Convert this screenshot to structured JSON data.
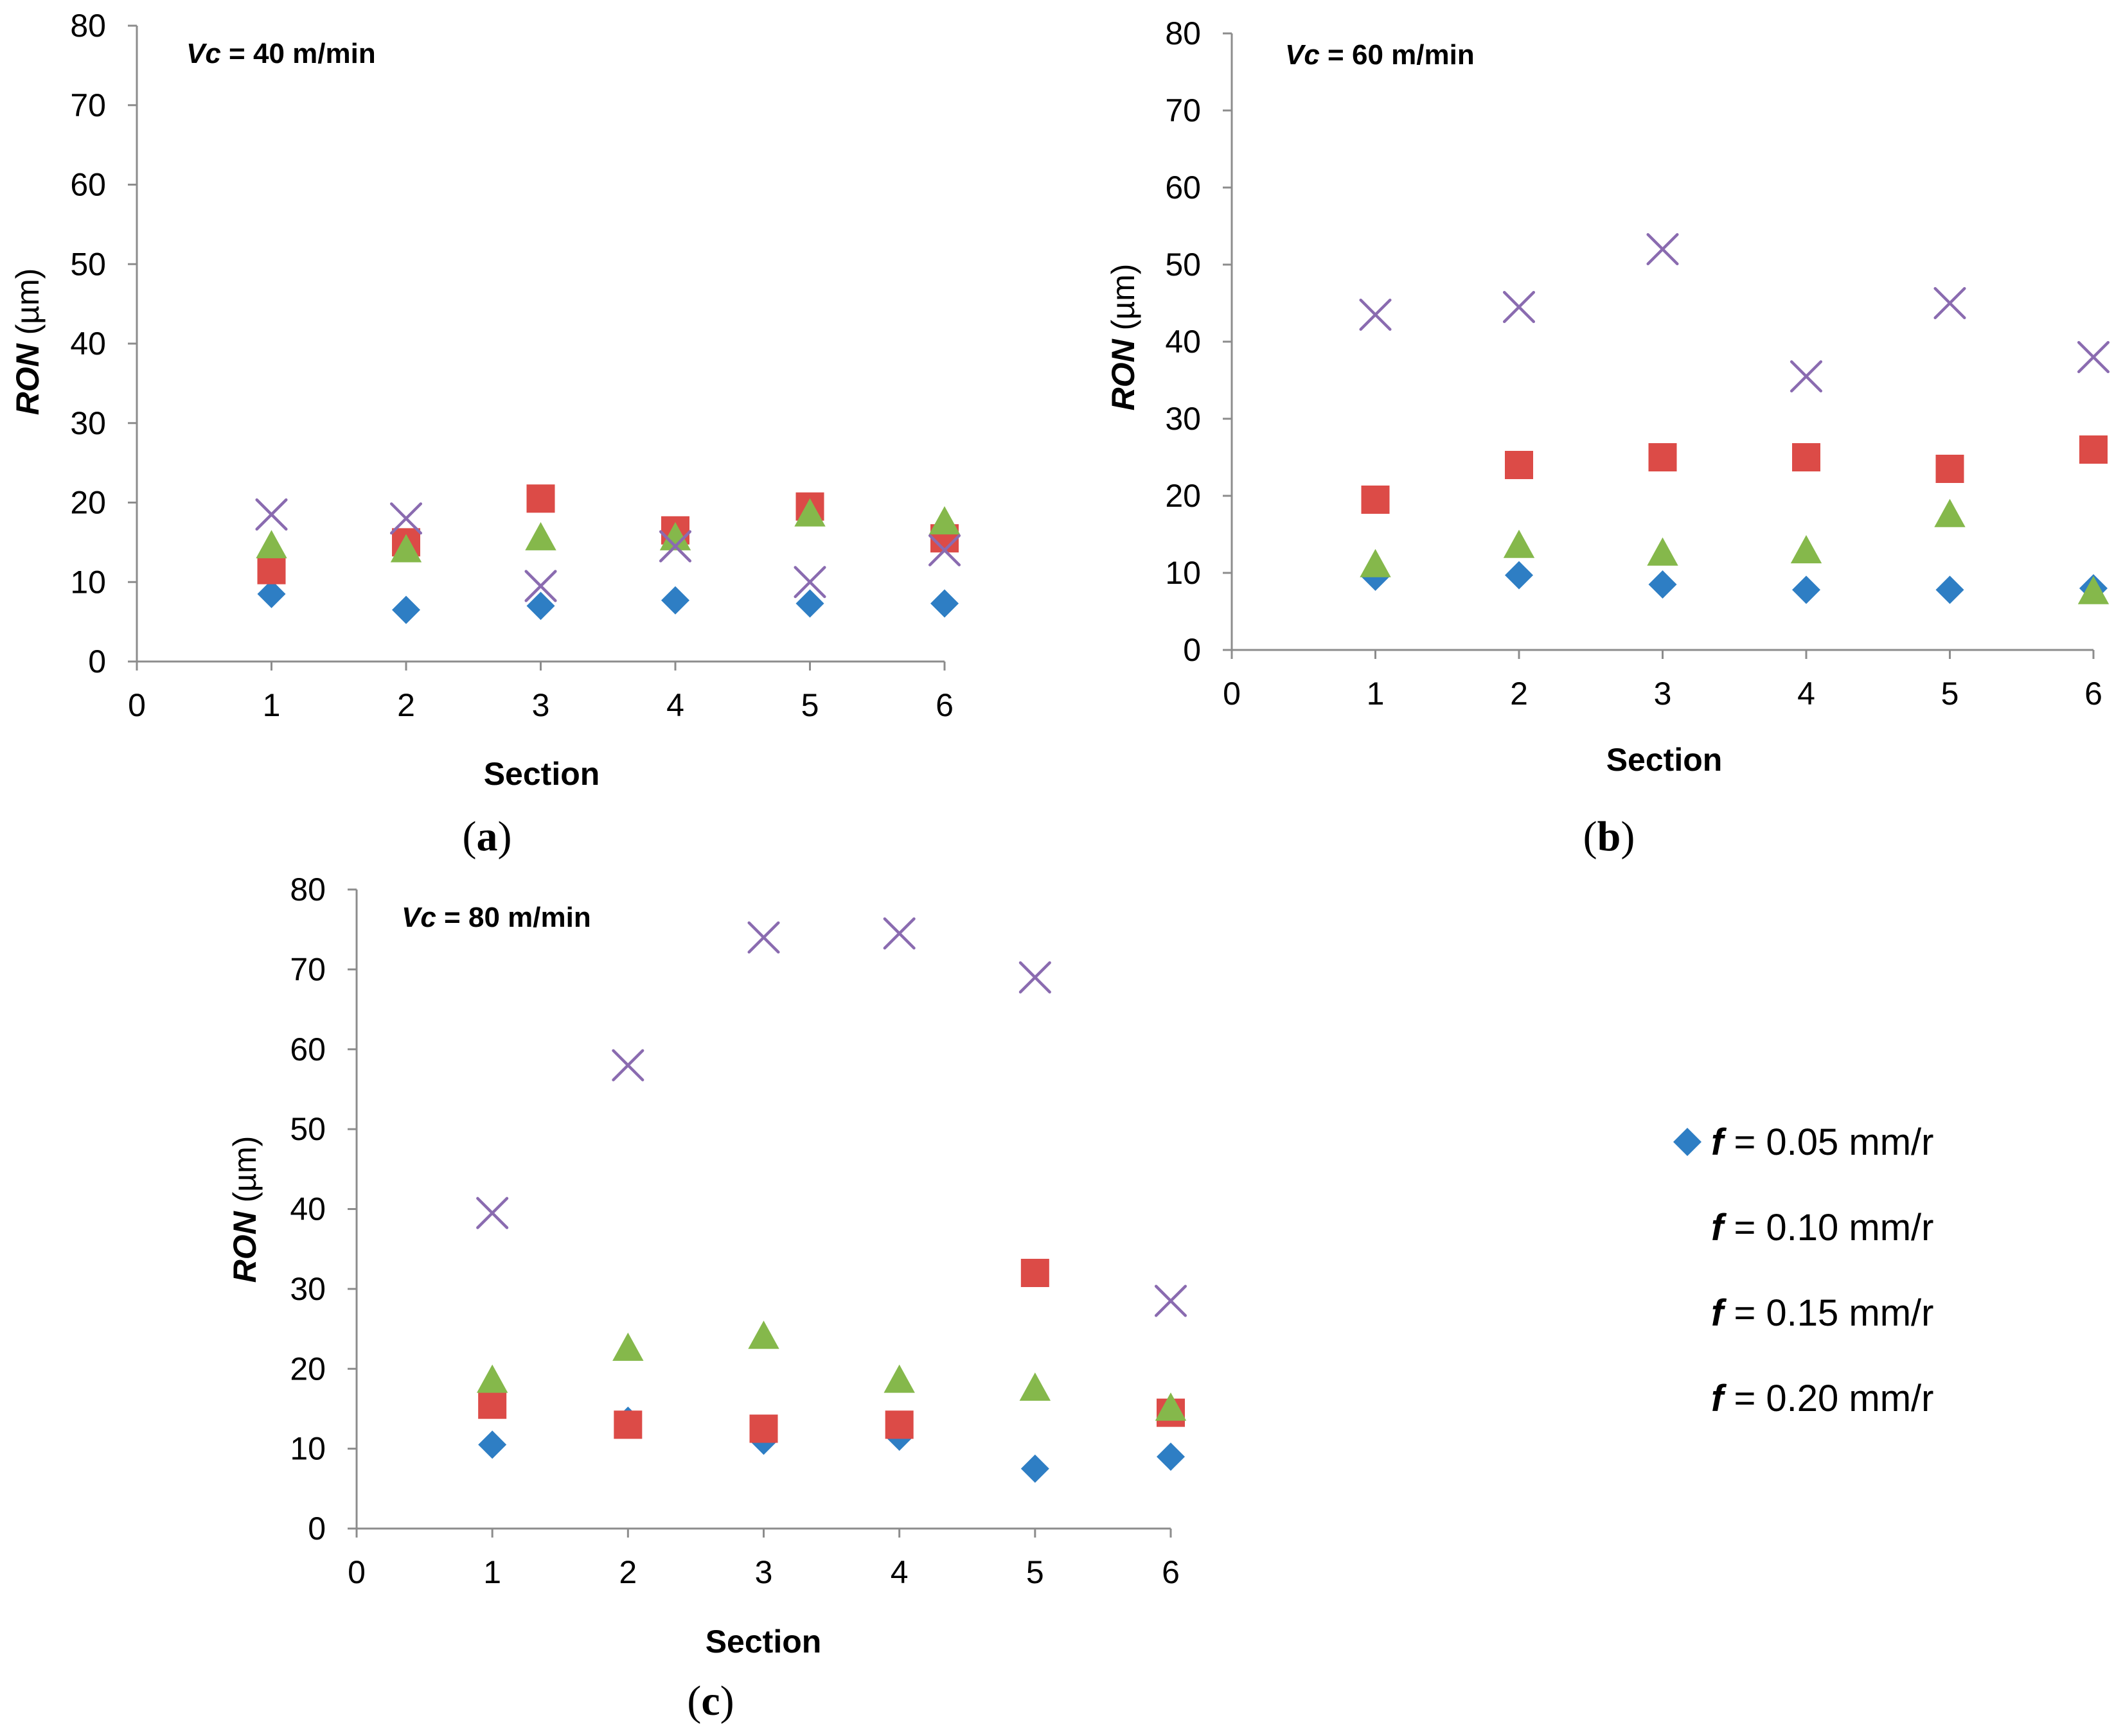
{
  "colors": {
    "f005": "#2e7ec4",
    "f010": "#dc4b47",
    "f015": "#85b84b",
    "f020": "#8a6bb0",
    "axis": "#8c8c8c"
  },
  "legend": {
    "items": [
      {
        "var": "f",
        "text": " = 0.05 mm/r",
        "marker": "diamond",
        "color_key": "f005"
      },
      {
        "var": "f",
        "text": " = 0.10 mm/r",
        "marker": "square",
        "color_key": "f010"
      },
      {
        "var": "f",
        "text": " = 0.15 mm/r",
        "marker": "triangle",
        "color_key": "f015"
      },
      {
        "var": "f",
        "text": " = 0.20 mm/r",
        "marker": "x",
        "color_key": "f020"
      }
    ]
  },
  "chart_data": [
    {
      "type": "scatter",
      "caption": {
        "open": "(",
        "letter": "a",
        "close": ")"
      },
      "title": {
        "var": "Vc",
        "rest": " = 40 m/min"
      },
      "xlabel": "Section",
      "ylabel": {
        "var": "RON",
        "unit": " (µm)"
      },
      "xlim": [
        0,
        6
      ],
      "ylim": [
        0,
        80
      ],
      "xticks": [
        "0",
        "1",
        "2",
        "3",
        "4",
        "5",
        "6"
      ],
      "yticks": [
        "0",
        "10",
        "20",
        "30",
        "40",
        "50",
        "60",
        "70",
        "80"
      ],
      "x": [
        1,
        2,
        3,
        4,
        5,
        6
      ],
      "series": [
        {
          "name": "f = 0.05 mm/r",
          "marker": "diamond",
          "values": [
            8.5,
            6.5,
            7.0,
            7.7,
            7.3,
            7.3
          ]
        },
        {
          "name": "f = 0.10 mm/r",
          "marker": "square",
          "values": [
            11.5,
            15.0,
            20.5,
            16.5,
            19.5,
            15.5
          ]
        },
        {
          "name": "f = 0.15 mm/r",
          "marker": "triangle",
          "values": [
            14.5,
            14.0,
            15.5,
            15.5,
            18.5,
            17.5
          ]
        },
        {
          "name": "f = 0.20 mm/r",
          "marker": "x",
          "values": [
            18.5,
            18.0,
            9.5,
            14.5,
            10.0,
            14.0
          ]
        }
      ]
    },
    {
      "type": "scatter",
      "caption": {
        "open": "(",
        "letter": "b",
        "close": ")"
      },
      "title": {
        "var": "Vc",
        "rest": " = 60 m/min"
      },
      "xlabel": "Section",
      "ylabel": {
        "var": "RON",
        "unit": " (µm)"
      },
      "xlim": [
        0,
        6
      ],
      "ylim": [
        0,
        80
      ],
      "xticks": [
        "0",
        "1",
        "2",
        "3",
        "4",
        "5",
        "6"
      ],
      "yticks": [
        "0",
        "10",
        "20",
        "30",
        "40",
        "50",
        "60",
        "70",
        "80"
      ],
      "x": [
        1,
        2,
        3,
        4,
        5,
        6
      ],
      "series": [
        {
          "name": "f = 0.05 mm/r",
          "marker": "diamond",
          "values": [
            9.5,
            9.7,
            8.5,
            7.8,
            7.8,
            8.0
          ]
        },
        {
          "name": "f = 0.10 mm/r",
          "marker": "square",
          "values": [
            19.5,
            24.0,
            25.0,
            25.0,
            23.5,
            26.0
          ]
        },
        {
          "name": "f = 0.15 mm/r",
          "marker": "triangle",
          "values": [
            11.0,
            13.5,
            12.5,
            12.8,
            17.5,
            7.5
          ]
        },
        {
          "name": "f = 0.20 mm/r",
          "marker": "x",
          "values": [
            43.5,
            44.5,
            52.0,
            35.5,
            45.0,
            38.0
          ]
        }
      ]
    },
    {
      "type": "scatter",
      "caption": {
        "open": "(",
        "letter": "c",
        "close": ")"
      },
      "title": {
        "var": "Vc",
        "rest": " = 80 m/min"
      },
      "xlabel": "Section",
      "ylabel": {
        "var": "RON",
        "unit": " (µm)"
      },
      "xlim": [
        0,
        6
      ],
      "ylim": [
        0,
        80
      ],
      "xticks": [
        "0",
        "1",
        "2",
        "3",
        "4",
        "5",
        "6"
      ],
      "yticks": [
        "0",
        "10",
        "20",
        "30",
        "40",
        "50",
        "60",
        "70",
        "80"
      ],
      "x": [
        1,
        2,
        3,
        4,
        5,
        6
      ],
      "series": [
        {
          "name": "f = 0.05 mm/r",
          "marker": "diamond",
          "values": [
            10.5,
            13.5,
            11.0,
            11.5,
            7.5,
            9.0
          ]
        },
        {
          "name": "f = 0.10 mm/r",
          "marker": "square",
          "values": [
            15.5,
            13.0,
            12.5,
            13.0,
            32.0,
            14.5
          ]
        },
        {
          "name": "f = 0.15 mm/r",
          "marker": "triangle",
          "values": [
            18.5,
            22.5,
            24.0,
            18.5,
            17.5,
            15.0
          ]
        },
        {
          "name": "f = 0.20 mm/r",
          "marker": "x",
          "values": [
            39.5,
            58.0,
            74.0,
            74.5,
            69.0,
            28.5
          ]
        }
      ]
    }
  ]
}
